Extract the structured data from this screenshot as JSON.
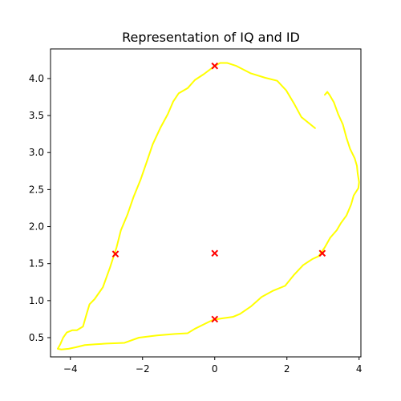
{
  "chart_data": {
    "type": "line",
    "title": "Representation of IQ and ID",
    "xlabel": "",
    "ylabel": "",
    "xlim": [
      -4.55,
      4.05
    ],
    "ylim": [
      0.24,
      4.4
    ],
    "xticks": [
      -4,
      -2,
      0,
      2,
      4
    ],
    "yticks": [
      0.5,
      1.0,
      1.5,
      2.0,
      2.5,
      3.0,
      3.5,
      4.0
    ],
    "xtick_labels": [
      "−4",
      "−2",
      "0",
      "2",
      "4"
    ],
    "ytick_labels": [
      "0.5",
      "1.0",
      "1.5",
      "2.0",
      "2.5",
      "3.0",
      "3.5",
      "4.0"
    ],
    "grid": false,
    "legend": "none",
    "series": [
      {
        "kind": "line",
        "color": "#ffff00",
        "points": [
          [
            2.78,
            3.33
          ],
          [
            2.4,
            3.48
          ],
          [
            2.2,
            3.66
          ],
          [
            1.98,
            3.84
          ],
          [
            1.73,
            3.97
          ],
          [
            1.4,
            4.01
          ],
          [
            1.0,
            4.07
          ],
          [
            0.6,
            4.17
          ],
          [
            0.35,
            4.21
          ],
          [
            0.15,
            4.21
          ],
          [
            0.0,
            4.17
          ],
          [
            -0.3,
            4.06
          ],
          [
            -0.55,
            3.98
          ],
          [
            -0.75,
            3.87
          ],
          [
            -1.0,
            3.8
          ],
          [
            -1.15,
            3.69
          ],
          [
            -1.3,
            3.52
          ],
          [
            -1.5,
            3.34
          ],
          [
            -1.72,
            3.11
          ],
          [
            -1.88,
            2.88
          ],
          [
            -2.05,
            2.64
          ],
          [
            -2.25,
            2.4
          ],
          [
            -2.42,
            2.16
          ],
          [
            -2.6,
            1.95
          ],
          [
            -2.72,
            1.72
          ],
          [
            -2.9,
            1.45
          ],
          [
            -3.1,
            1.18
          ],
          [
            -3.33,
            1.02
          ],
          [
            -3.47,
            0.95
          ],
          [
            -3.55,
            0.82
          ],
          [
            -3.65,
            0.65
          ],
          [
            -3.82,
            0.6
          ],
          [
            -3.95,
            0.6
          ],
          [
            -4.1,
            0.57
          ],
          [
            -4.2,
            0.5
          ],
          [
            -4.28,
            0.41
          ],
          [
            -4.35,
            0.35
          ],
          [
            -4.25,
            0.34
          ],
          [
            -4.05,
            0.35
          ],
          [
            -3.85,
            0.37
          ],
          [
            -3.6,
            0.4
          ],
          [
            -3.3,
            0.41
          ],
          [
            -3.0,
            0.42
          ],
          [
            -2.5,
            0.43
          ],
          [
            -2.1,
            0.5
          ],
          [
            -1.6,
            0.53
          ],
          [
            -1.1,
            0.55
          ],
          [
            -0.75,
            0.56
          ],
          [
            -0.55,
            0.62
          ],
          [
            -0.3,
            0.68
          ],
          [
            -0.05,
            0.74
          ],
          [
            0.2,
            0.76
          ],
          [
            0.5,
            0.78
          ],
          [
            0.7,
            0.82
          ],
          [
            1.0,
            0.92
          ],
          [
            1.3,
            1.05
          ],
          [
            1.6,
            1.13
          ],
          [
            1.95,
            1.2
          ],
          [
            2.2,
            1.35
          ],
          [
            2.45,
            1.48
          ],
          [
            2.7,
            1.56
          ],
          [
            2.88,
            1.6
          ],
          [
            3.05,
            1.72
          ],
          [
            3.2,
            1.85
          ],
          [
            3.38,
            1.95
          ],
          [
            3.5,
            2.05
          ],
          [
            3.65,
            2.15
          ],
          [
            3.78,
            2.3
          ],
          [
            3.85,
            2.42
          ],
          [
            3.98,
            2.52
          ],
          [
            4.0,
            2.6
          ],
          [
            3.96,
            2.72
          ],
          [
            3.94,
            2.82
          ],
          [
            3.88,
            2.92
          ],
          [
            3.75,
            3.05
          ],
          [
            3.65,
            3.2
          ],
          [
            3.55,
            3.38
          ],
          [
            3.42,
            3.52
          ],
          [
            3.3,
            3.68
          ],
          [
            3.18,
            3.78
          ],
          [
            3.12,
            3.82
          ],
          [
            3.05,
            3.78
          ]
        ]
      },
      {
        "kind": "scatter",
        "marker": "x",
        "color": "#ff0000",
        "points": [
          [
            0.0,
            4.17
          ],
          [
            -2.75,
            1.63
          ],
          [
            0.0,
            1.64
          ],
          [
            2.98,
            1.64
          ],
          [
            0.0,
            0.75
          ]
        ]
      }
    ]
  }
}
